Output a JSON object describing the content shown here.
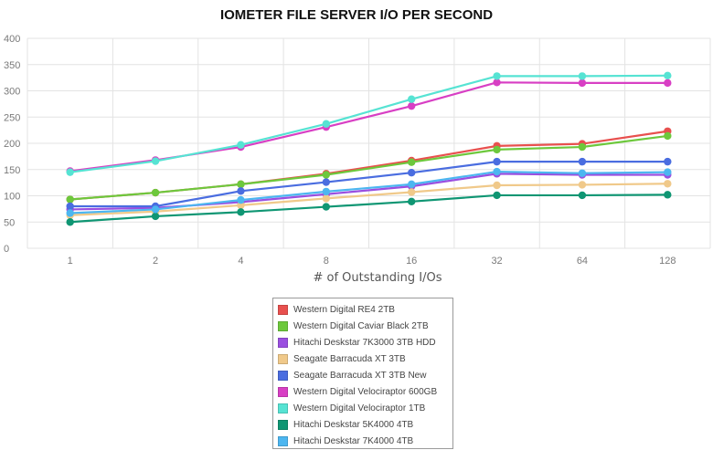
{
  "chart_data": {
    "type": "line",
    "title": "IOMETER FILE SERVER I/O PER SECOND",
    "xlabel": "# of Outstanding I/Os",
    "ylabel": "",
    "categories": [
      "1",
      "2",
      "4",
      "8",
      "16",
      "32",
      "64",
      "128"
    ],
    "ylim": [
      0,
      400
    ],
    "yticks": [
      0,
      50,
      100,
      150,
      200,
      250,
      300,
      350,
      400
    ],
    "grid": true,
    "legend_position": "bottom-center",
    "series": [
      {
        "name": "Western Digital RE4 2TB",
        "color": "#e8504e",
        "values": [
          93,
          106,
          122,
          142,
          167,
          195,
          199,
          223
        ]
      },
      {
        "name": "Western Digital Caviar Black 2TB",
        "color": "#6dc83c",
        "values": [
          93,
          106,
          122,
          140,
          164,
          188,
          193,
          214
        ]
      },
      {
        "name": "Hitachi Deskstar 7K3000 3TB HDD",
        "color": "#9a4fe0",
        "values": [
          74,
          77,
          88,
          103,
          118,
          142,
          140,
          140
        ]
      },
      {
        "name": "Seagate Barracuda XT 3TB",
        "color": "#f0c98a",
        "values": [
          63,
          70,
          82,
          95,
          107,
          120,
          121,
          123
        ]
      },
      {
        "name": "Seagate Barracuda XT 3TB New",
        "color": "#4a6de0",
        "values": [
          80,
          80,
          109,
          126,
          144,
          165,
          165,
          165
        ]
      },
      {
        "name": "Western Digital Velociraptor 600GB",
        "color": "#d83fc4",
        "values": [
          147,
          168,
          193,
          231,
          271,
          316,
          315,
          315
        ]
      },
      {
        "name": "Western Digital Velociraptor 1TB",
        "color": "#56e3d3",
        "values": [
          145,
          166,
          197,
          237,
          284,
          328,
          328,
          329
        ]
      },
      {
        "name": "Hitachi Deskstar 5K4000 4TB",
        "color": "#0f9673",
        "values": [
          50,
          61,
          69,
          79,
          89,
          101,
          101,
          102
        ]
      },
      {
        "name": "Hitachi Deskstar 7K4000 4TB",
        "color": "#4cb6f0",
        "values": [
          67,
          74,
          92,
          108,
          122,
          146,
          143,
          145
        ]
      }
    ]
  }
}
